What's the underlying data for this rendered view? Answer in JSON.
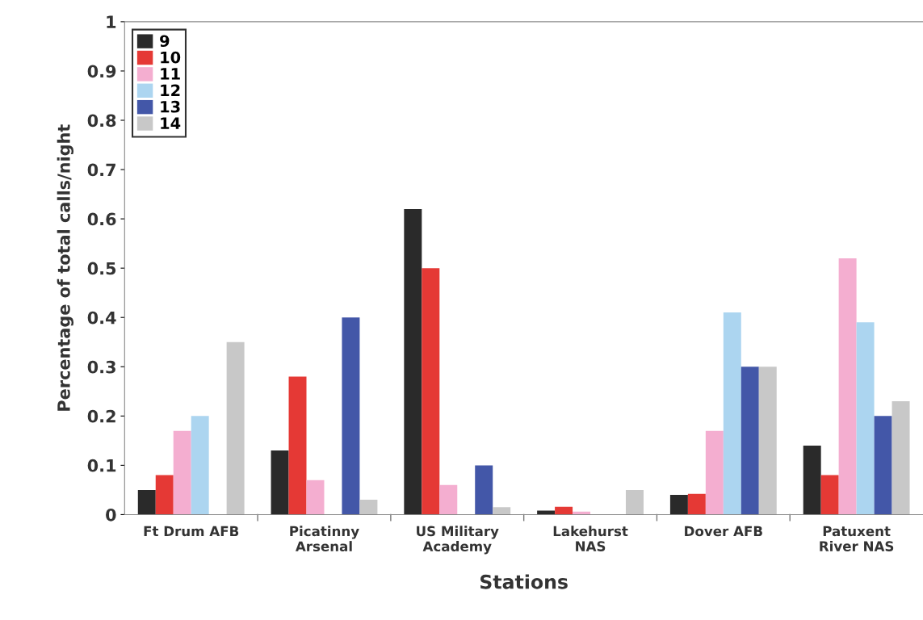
{
  "chart_data": {
    "type": "bar",
    "xlabel": "Stations",
    "ylabel": "Percentage of total calls/night",
    "categories": [
      "Ft Drum AFB",
      "Picatinny\nArsenal",
      "US Military\nAcademy",
      "Lakehurst\nNAS",
      "Dover AFB",
      "Patuxent\nRiver NAS"
    ],
    "series": [
      {
        "name": "9",
        "color": "#2a2a2a",
        "values": [
          0.05,
          0.13,
          0.62,
          0.008,
          0.04,
          0.14
        ]
      },
      {
        "name": "10",
        "color": "#e53935",
        "values": [
          0.08,
          0.28,
          0.5,
          0.016,
          0.042,
          0.08
        ]
      },
      {
        "name": "11",
        "color": "#f4aed0",
        "values": [
          0.17,
          0.07,
          0.06,
          0.006,
          0.17,
          0.52
        ]
      },
      {
        "name": "12",
        "color": "#acd5f0",
        "values": [
          0.2,
          0,
          0,
          0,
          0.41,
          0.39
        ]
      },
      {
        "name": "13",
        "color": "#4357a8",
        "values": [
          0,
          0.4,
          0.1,
          0,
          0.3,
          0.2
        ]
      },
      {
        "name": "14",
        "color": "#c8c8c8",
        "values": [
          0.35,
          0.03,
          0.015,
          0.05,
          0.3,
          0.23
        ]
      }
    ],
    "ylim": [
      0,
      1
    ],
    "yticks": [
      0,
      0.1,
      0.2,
      0.3,
      0.4,
      0.5,
      0.6,
      0.7,
      0.8,
      0.9,
      1
    ],
    "legend": "top left",
    "grid": false
  }
}
